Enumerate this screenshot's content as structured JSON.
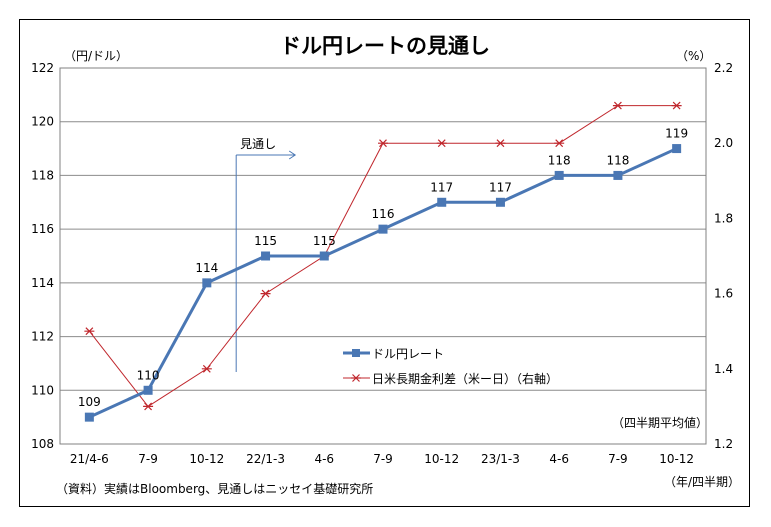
{
  "chart_data": {
    "type": "line",
    "title": "ドル円レートの見通し",
    "left_axis_label": "（円/ドル）",
    "right_axis_label": "（%）",
    "categories": [
      "21/4-6",
      "7-9",
      "10-12",
      "22/1-3",
      "4-6",
      "7-9",
      "10-12",
      "23/1-3",
      "4-6",
      "7-9",
      "10-12"
    ],
    "x_unit_label": "（年/四半期）",
    "left_ylim": [
      108,
      122
    ],
    "left_ticks": [
      108,
      110,
      112,
      114,
      116,
      118,
      120,
      122
    ],
    "right_ylim": [
      1.2,
      2.2
    ],
    "right_ticks": [
      "1.2",
      "1.4",
      "1.6",
      "1.8",
      "2.0",
      "2.2"
    ],
    "grid": true,
    "legend_position": "center-right",
    "series": [
      {
        "name": "ドル円レート",
        "axis": "left",
        "marker": "square",
        "color": "#4a77b4",
        "values": [
          109,
          110,
          114,
          115,
          115,
          116,
          117,
          117,
          118,
          118,
          119
        ],
        "data_labels": [
          "109",
          "110",
          "114",
          "115",
          "115",
          "116",
          "117",
          "117",
          "118",
          "118",
          "119"
        ]
      },
      {
        "name": "日米長期金利差（米ー日）（右軸）",
        "axis": "right",
        "marker": "star",
        "color": "#c0272d",
        "values": [
          1.5,
          1.3,
          1.4,
          1.6,
          1.7,
          2.0,
          2.0,
          2.0,
          2.0,
          2.1,
          2.1
        ]
      }
    ],
    "annotation": {
      "text": "見通し",
      "start_index": 2.5
    },
    "note_right": "（四半期平均値）",
    "source": "（資料）実績はBloomberg、見通しはニッセイ基礎研究所"
  }
}
